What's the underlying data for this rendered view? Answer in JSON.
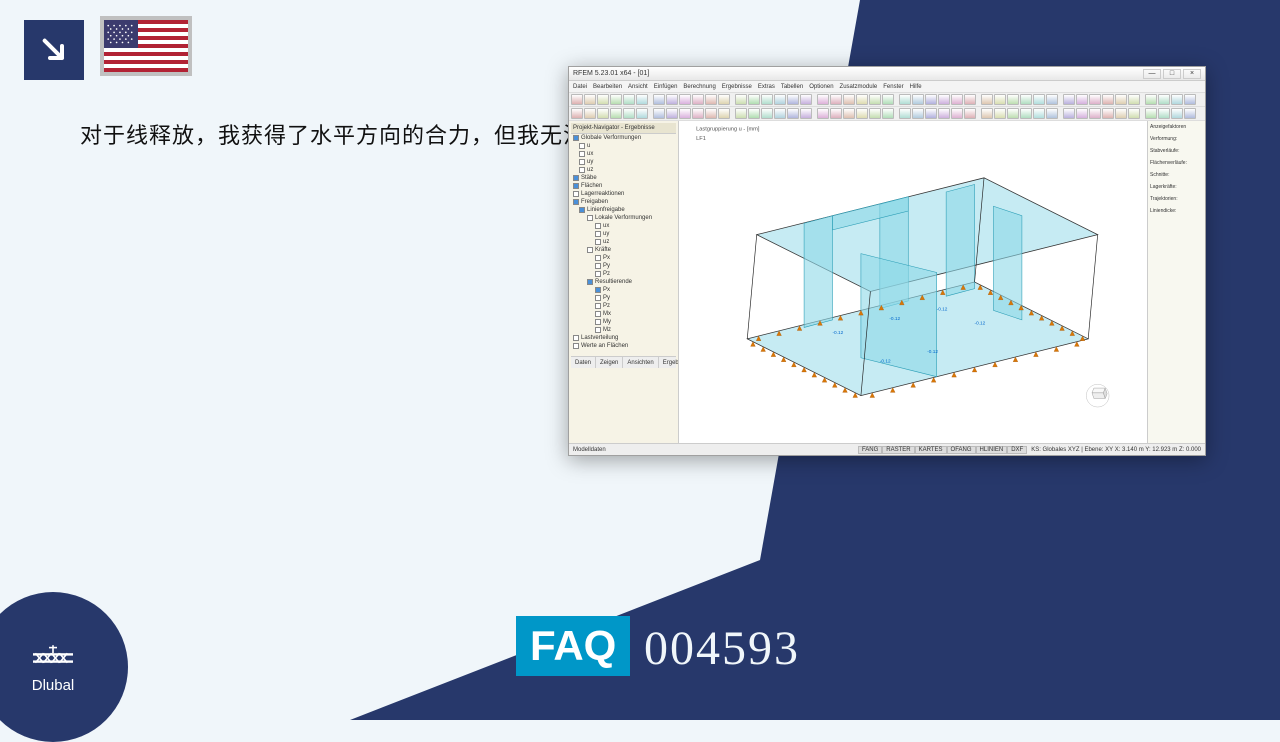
{
  "arrow_badge": {
    "bg": "#27386b",
    "arrow_color": "#ffffff"
  },
  "flag": {
    "country": "us"
  },
  "question": "对于线释放，我获得了水平方向的合力，但我无法理解。",
  "app": {
    "title": "RFEM 5.23.01 x64 - [01]",
    "menu": [
      "Datei",
      "Bearbeiten",
      "Ansicht",
      "Einfügen",
      "Berechnung",
      "Ergebnisse",
      "Extras",
      "Tabellen",
      "Optionen",
      "Zusatzmodule",
      "Fenster",
      "Hilfe"
    ],
    "window_controls": [
      "—",
      "□",
      "×"
    ],
    "toolbar_rows": 2,
    "toolbar_buttons_per_row": 46,
    "tree": {
      "header": "Projekt-Navigator - Ergebnisse",
      "items": [
        {
          "l": 0,
          "label": "Globale Verformungen",
          "chk": true
        },
        {
          "l": 1,
          "label": "u",
          "chk": false
        },
        {
          "l": 1,
          "label": "ux",
          "chk": false
        },
        {
          "l": 1,
          "label": "uy",
          "chk": false
        },
        {
          "l": 1,
          "label": "uz",
          "chk": false
        },
        {
          "l": 0,
          "label": "Stäbe",
          "chk": true
        },
        {
          "l": 0,
          "label": "Flächen",
          "chk": true
        },
        {
          "l": 0,
          "label": "Lagerreaktionen",
          "chk": false
        },
        {
          "l": 0,
          "label": "Freigaben",
          "chk": true
        },
        {
          "l": 1,
          "label": "Linienfreigabe",
          "chk": true
        },
        {
          "l": 2,
          "label": "Lokale Verformungen",
          "chk": false
        },
        {
          "l": 3,
          "label": "ux",
          "chk": false
        },
        {
          "l": 3,
          "label": "uy",
          "chk": false
        },
        {
          "l": 3,
          "label": "uz",
          "chk": false
        },
        {
          "l": 2,
          "label": "Kräfte",
          "chk": false
        },
        {
          "l": 3,
          "label": "Px",
          "chk": false
        },
        {
          "l": 3,
          "label": "Py",
          "chk": false
        },
        {
          "l": 3,
          "label": "Pz",
          "chk": false
        },
        {
          "l": 2,
          "label": "Resultierende",
          "chk": true
        },
        {
          "l": 3,
          "label": "Px",
          "chk": true
        },
        {
          "l": 3,
          "label": "Py",
          "chk": false
        },
        {
          "l": 3,
          "label": "Pz",
          "chk": false
        },
        {
          "l": 3,
          "label": "Mx",
          "chk": false
        },
        {
          "l": 3,
          "label": "My",
          "chk": false
        },
        {
          "l": 3,
          "label": "Mz",
          "chk": false
        },
        {
          "l": 0,
          "label": "Lastverteilung",
          "chk": false
        },
        {
          "l": 0,
          "label": "Werte an Flächen",
          "chk": false
        }
      ]
    },
    "right_panel": [
      "Anzeigefaktoren",
      "Verformung:",
      "Stabverläufe:",
      "Flächenverläufe:",
      "Schnitte:",
      "Lagerkräfte:",
      "Trajektorien:",
      "Liniendicke:"
    ],
    "viewport": {
      "label": "Lastgruppierung u - [mm]",
      "lf": "LF1",
      "model_color": "#8ed8e8",
      "outline_color": "#333333",
      "support_color": "#d97706",
      "value_color": "#0066cc"
    },
    "tabs": [
      "Daten",
      "Zeigen",
      "Ansichten",
      "Ergebnisse"
    ],
    "status": {
      "left": "Modelldaten",
      "boxes": [
        "FANG",
        "RASTER",
        "KARTES",
        "OFANG",
        "HLINIEN",
        "DXF"
      ],
      "right": "KS: Globales XYZ | Ebene: XY   X: 3.140 m   Y: 12.923 m   Z: 0.000"
    }
  },
  "faq": {
    "label": "FAQ",
    "number": "004593",
    "badge_bg": "#0097c8"
  },
  "logo": {
    "text": "Dlubal",
    "bg": "#27386b"
  },
  "colors": {
    "page_bg": "#f0f6fa",
    "navy": "#27386b",
    "faq_text": "#f0f6fa"
  }
}
